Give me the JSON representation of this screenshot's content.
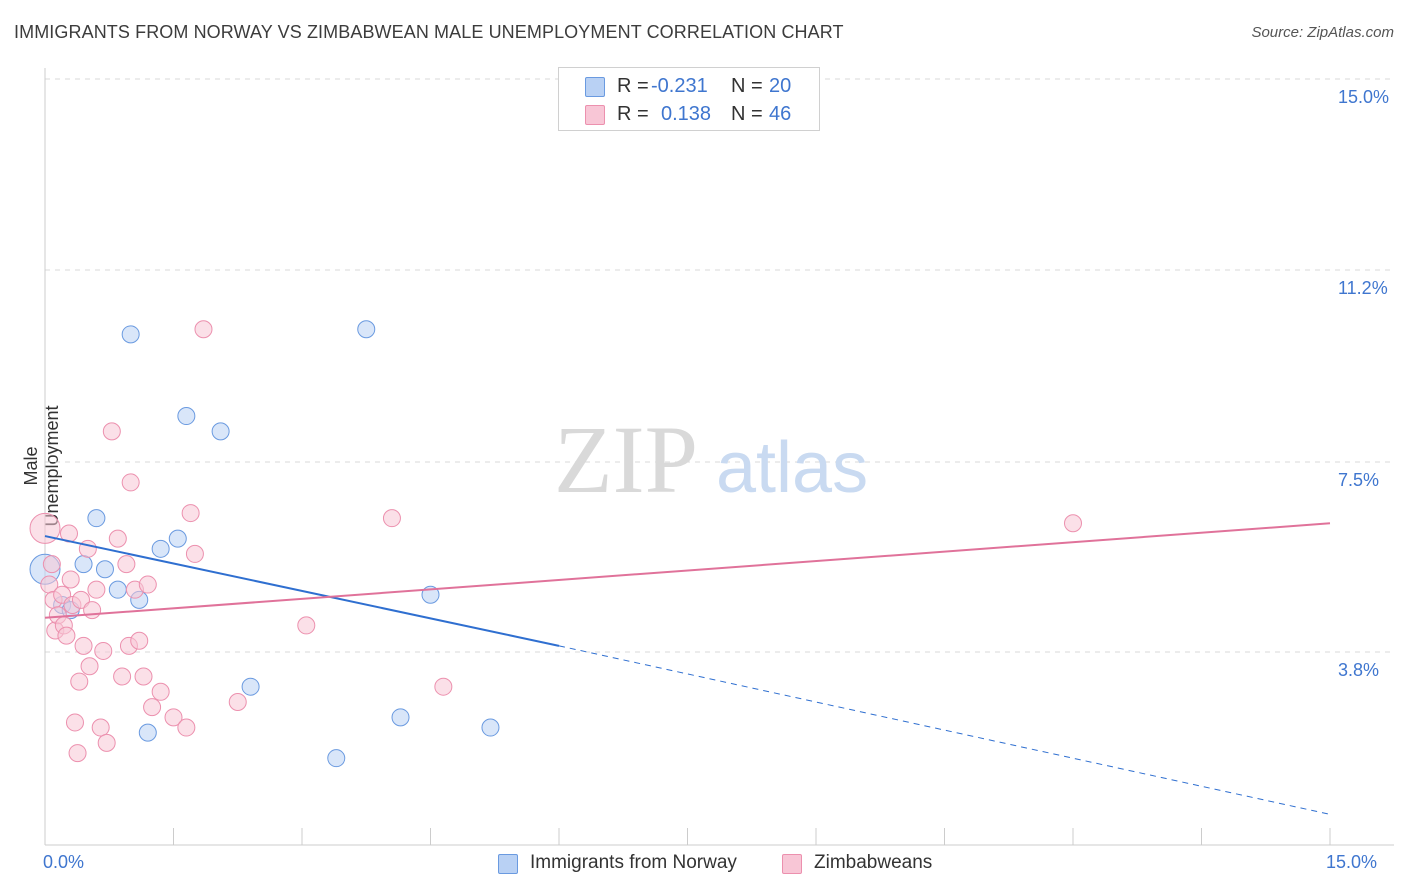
{
  "header": {
    "title": "IMMIGRANTS FROM NORWAY VS ZIMBABWEAN MALE UNEMPLOYMENT CORRELATION CHART",
    "source": "Source: ZipAtlas.com"
  },
  "watermark": {
    "zip": "ZIP",
    "atlas": "atlas"
  },
  "legend_top": {
    "rows": [
      {
        "r_label": "R =",
        "r_value": "-0.231",
        "n_label": "N =",
        "n_value": "20"
      },
      {
        "r_label": "R =",
        "r_value": "0.138",
        "n_label": "N =",
        "n_value": "46"
      }
    ]
  },
  "legend_bottom": {
    "items": [
      "Immigrants from Norway",
      "Zimbabweans"
    ]
  },
  "colors": {
    "norway_fill": "#b9d1f4",
    "norway_stroke": "#6a9ae0",
    "norway_line": "#2f6fd0",
    "zim_fill": "#f8c6d6",
    "zim_stroke": "#ec90ae",
    "zim_line": "#e0729a",
    "tick_text": "#3f76cf",
    "grid": "#d9d9d9"
  },
  "chart_data": {
    "type": "scatter",
    "title": "IMMIGRANTS FROM NORWAY VS ZIMBABWEAN MALE UNEMPLOYMENT CORRELATION CHART",
    "xlabel": "",
    "ylabel": "Male Unemployment",
    "xlim": [
      0,
      15
    ],
    "ylim": [
      0,
      15
    ],
    "x_tick_labels": [
      "0.0%",
      "15.0%"
    ],
    "y_ticks": [
      3.8,
      7.5,
      11.2,
      15.0
    ],
    "y_tick_labels": [
      "3.8%",
      "7.5%",
      "11.2%",
      "15.0%"
    ],
    "grid": "horizontal dashed",
    "series": [
      {
        "name": "Immigrants from Norway",
        "r": -0.231,
        "n": 20,
        "points": [
          [
            0.0,
            5.4
          ],
          [
            0.2,
            4.7
          ],
          [
            0.3,
            4.6
          ],
          [
            0.45,
            5.5
          ],
          [
            0.6,
            6.4
          ],
          [
            0.7,
            5.4
          ],
          [
            0.85,
            5.0
          ],
          [
            1.0,
            10.0
          ],
          [
            1.1,
            4.8
          ],
          [
            1.2,
            2.2
          ],
          [
            1.35,
            5.8
          ],
          [
            1.55,
            6.0
          ],
          [
            1.65,
            8.4
          ],
          [
            2.05,
            8.1
          ],
          [
            2.4,
            3.1
          ],
          [
            3.4,
            1.7
          ],
          [
            3.75,
            10.1
          ],
          [
            4.15,
            2.5
          ],
          [
            4.5,
            4.9
          ],
          [
            5.2,
            2.3
          ]
        ],
        "trend": {
          "x0": 0.0,
          "y0": 6.05,
          "x1": 6.0,
          "y1": 3.9,
          "dashed_to_x": 15.0,
          "dashed_to_y": 0.6
        }
      },
      {
        "name": "Zimbabweans",
        "r": 0.138,
        "n": 46,
        "points": [
          [
            0.0,
            6.2
          ],
          [
            0.05,
            5.1
          ],
          [
            0.1,
            4.8
          ],
          [
            0.12,
            4.2
          ],
          [
            0.15,
            4.5
          ],
          [
            0.2,
            4.9
          ],
          [
            0.22,
            4.3
          ],
          [
            0.25,
            4.1
          ],
          [
            0.28,
            6.1
          ],
          [
            0.3,
            5.2
          ],
          [
            0.32,
            4.7
          ],
          [
            0.35,
            2.4
          ],
          [
            0.38,
            1.8
          ],
          [
            0.4,
            3.2
          ],
          [
            0.42,
            4.8
          ],
          [
            0.45,
            3.9
          ],
          [
            0.5,
            5.8
          ],
          [
            0.52,
            3.5
          ],
          [
            0.6,
            5.0
          ],
          [
            0.65,
            2.3
          ],
          [
            0.72,
            2.0
          ],
          [
            0.78,
            8.1
          ],
          [
            0.85,
            6.0
          ],
          [
            0.9,
            3.3
          ],
          [
            0.95,
            5.5
          ],
          [
            0.98,
            3.9
          ],
          [
            1.0,
            7.1
          ],
          [
            1.05,
            5.0
          ],
          [
            1.1,
            4.0
          ],
          [
            1.2,
            5.1
          ],
          [
            1.25,
            2.7
          ],
          [
            1.35,
            3.0
          ],
          [
            1.5,
            2.5
          ],
          [
            1.65,
            2.3
          ],
          [
            1.7,
            6.5
          ],
          [
            1.75,
            5.7
          ],
          [
            1.85,
            10.1
          ],
          [
            2.25,
            2.8
          ],
          [
            3.05,
            4.3
          ],
          [
            4.05,
            6.4
          ],
          [
            4.65,
            3.1
          ],
          [
            12.0,
            6.3
          ],
          [
            0.55,
            4.6
          ],
          [
            0.68,
            3.8
          ],
          [
            1.15,
            3.3
          ],
          [
            0.08,
            5.5
          ]
        ],
        "trend": {
          "x0": 0.0,
          "y0": 4.45,
          "x1": 15.0,
          "y1": 6.3
        }
      }
    ]
  }
}
